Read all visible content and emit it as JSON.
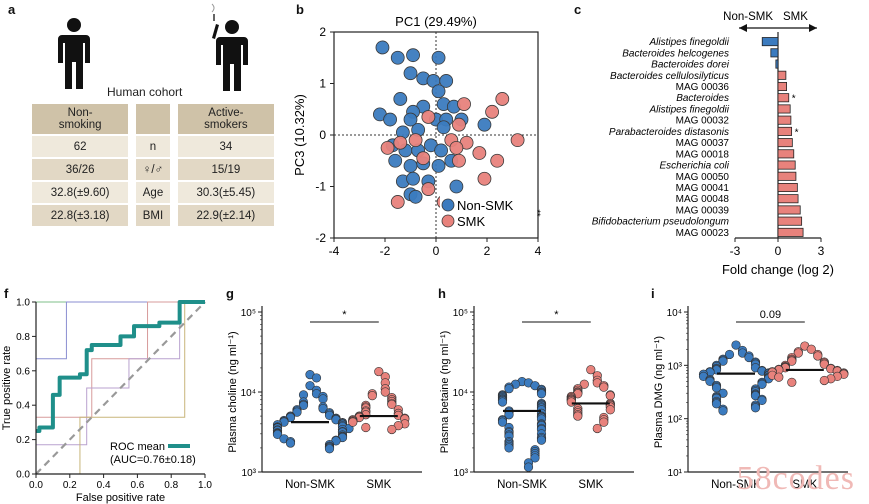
{
  "panel_labels": [
    "a",
    "b",
    "c",
    "f",
    "g",
    "h",
    "i"
  ],
  "colors": {
    "non_smk": "#3b7bbf",
    "smk": "#e8827c",
    "teal": "#1f8f8a",
    "beige_dark": "#cfc2a8",
    "beige_mid": "#e2d8c5",
    "beige_light": "#efe9dc"
  },
  "panel_a": {
    "title": "Human cohort",
    "icons": [
      "person-icon",
      "person-smoking-icon"
    ],
    "header": {
      "left": [
        "Non-",
        "smoking"
      ],
      "right": [
        "Active-",
        "smokers"
      ]
    },
    "rows": [
      {
        "left": "62",
        "mid": "n",
        "right": "34"
      },
      {
        "left": "36/26",
        "mid": "♀/♂",
        "right": "15/19"
      },
      {
        "left": "32.8(±9.60)",
        "mid": "Age",
        "right": "30.3(±5.45)"
      },
      {
        "left": "22.8(±3.18)",
        "mid": "BMI",
        "right": "22.9(±2.14)"
      }
    ]
  },
  "chart_data": [
    {
      "id": "b",
      "type": "scatter",
      "title": "PC1 (29.49%)",
      "ylabel": "PC3 (10.32%)",
      "xlabel": "",
      "xlim": [
        -4,
        4
      ],
      "ylim": [
        -2,
        2
      ],
      "xticks": [
        "-4",
        "-2",
        "0",
        "2",
        "4"
      ],
      "yticks": [
        "-2",
        "-1",
        "0",
        "1",
        "2"
      ],
      "legend": {
        "position": "bottom-right",
        "entries": [
          "Non-SMK",
          "SMK"
        ],
        "significance": "**"
      },
      "series": [
        {
          "name": "Non-SMK",
          "points": [
            [
              -2.1,
              1.7
            ],
            [
              -1.5,
              1.5
            ],
            [
              -0.9,
              1.55
            ],
            [
              0.1,
              1.5
            ],
            [
              -1.0,
              1.2
            ],
            [
              -0.5,
              1.1
            ],
            [
              -0.1,
              1.05
            ],
            [
              0.4,
              1.05
            ],
            [
              0.1,
              0.85
            ],
            [
              -1.4,
              0.7
            ],
            [
              -0.5,
              0.55
            ],
            [
              -0.9,
              0.45
            ],
            [
              0.3,
              0.6
            ],
            [
              0.7,
              0.55
            ],
            [
              -2.2,
              0.4
            ],
            [
              -1.8,
              0.3
            ],
            [
              -1.0,
              0.3
            ],
            [
              0.0,
              0.3
            ],
            [
              0.4,
              0.3
            ],
            [
              -1.3,
              0.05
            ],
            [
              -0.7,
              0.1
            ],
            [
              0.3,
              0.15
            ],
            [
              1.0,
              0.3
            ],
            [
              1.9,
              0.2
            ],
            [
              -1.7,
              -0.2
            ],
            [
              -1.2,
              -0.3
            ],
            [
              -0.7,
              -0.3
            ],
            [
              -0.2,
              -0.2
            ],
            [
              0.2,
              -0.3
            ],
            [
              -1.6,
              -0.5
            ],
            [
              -1.0,
              -0.6
            ],
            [
              -0.5,
              -0.55
            ],
            [
              0.1,
              -0.6
            ],
            [
              -1.3,
              -0.9
            ],
            [
              -0.9,
              -0.85
            ],
            [
              -0.3,
              -0.9
            ],
            [
              0.6,
              -0.5
            ],
            [
              -1.0,
              -1.15
            ],
            [
              -0.8,
              -1.2
            ],
            [
              0.8,
              -1.0
            ]
          ]
        },
        {
          "name": "SMK",
          "points": [
            [
              2.6,
              0.7
            ],
            [
              2.2,
              0.45
            ],
            [
              1.1,
              0.6
            ],
            [
              -0.3,
              0.35
            ],
            [
              0.9,
              0.2
            ],
            [
              -1.9,
              -0.25
            ],
            [
              -1.4,
              -0.15
            ],
            [
              -0.8,
              -0.1
            ],
            [
              0.6,
              -0.1
            ],
            [
              1.2,
              -0.15
            ],
            [
              0.8,
              -0.25
            ],
            [
              3.2,
              -0.1
            ],
            [
              1.7,
              -0.35
            ],
            [
              -0.5,
              -0.45
            ],
            [
              0.9,
              -0.5
            ],
            [
              2.4,
              -0.5
            ],
            [
              -1.5,
              -1.3
            ],
            [
              -0.3,
              -1.05
            ],
            [
              0.3,
              -1.3
            ],
            [
              1.9,
              -0.85
            ],
            [
              1.3,
              -1.3
            ]
          ]
        }
      ]
    },
    {
      "id": "c",
      "type": "bar",
      "orientation": "horizontal",
      "xlabel": "Fold change (log 2)",
      "xlim": [
        -3,
        3
      ],
      "xticks": [
        "-3",
        "0",
        "3"
      ],
      "direction_labels": [
        "Non-SMK",
        "SMK"
      ],
      "categories": [
        "Alistipes finegoldii",
        "Bacteroides helcogenes",
        "Bacteroides dorei",
        "Bacteroides cellulosilyticus",
        "MAG 00036",
        "Bacteroides",
        "Alistipes finegoldii",
        "MAG 00032",
        "Parabacteroides distasonis",
        "MAG 00037",
        "MAG 00018",
        "Escherichia coli",
        "MAG 00050",
        "MAG 00041",
        "MAG 00048",
        "MAG 00039",
        "Bifidobacterium pseudolongum",
        "MAG 00023"
      ],
      "italic": [
        true,
        true,
        true,
        true,
        false,
        true,
        true,
        false,
        true,
        false,
        false,
        true,
        false,
        false,
        false,
        false,
        true,
        false
      ],
      "values": [
        -1.1,
        -0.5,
        -0.15,
        0.55,
        0.6,
        0.75,
        0.85,
        0.9,
        0.95,
        1.0,
        1.1,
        1.2,
        1.25,
        1.35,
        1.4,
        1.55,
        1.65,
        1.75
      ],
      "stars": [
        "",
        "",
        "",
        "",
        "",
        "*",
        "",
        "",
        "*",
        "",
        "",
        "",
        "",
        "",
        "",
        "",
        "",
        ""
      ]
    },
    {
      "id": "f",
      "type": "line",
      "xlabel": "False positive rate",
      "ylabel": "True positive rate",
      "xlim": [
        0,
        1
      ],
      "ylim": [
        0,
        1
      ],
      "xticks": [
        "0.0",
        "0.2",
        "0.4",
        "0.6",
        "0.8",
        "1.0"
      ],
      "yticks": [
        "0.0",
        "0.2",
        "0.4",
        "0.6",
        "0.8",
        "1.0"
      ],
      "legend": {
        "position": "bottom-right",
        "entries": [
          "ROC mean",
          "(AUC=0.76±0.18)"
        ]
      },
      "series": [
        {
          "name": "ROC mean",
          "points": [
            [
              0,
              0.25
            ],
            [
              0.02,
              0.25
            ],
            [
              0.02,
              0.27
            ],
            [
              0.1,
              0.27
            ],
            [
              0.1,
              0.46
            ],
            [
              0.14,
              0.46
            ],
            [
              0.14,
              0.56
            ],
            [
              0.26,
              0.56
            ],
            [
              0.26,
              0.58
            ],
            [
              0.3,
              0.58
            ],
            [
              0.3,
              0.72
            ],
            [
              0.33,
              0.72
            ],
            [
              0.33,
              0.75
            ],
            [
              0.5,
              0.75
            ],
            [
              0.5,
              0.8
            ],
            [
              0.58,
              0.8
            ],
            [
              0.58,
              0.86
            ],
            [
              0.73,
              0.86
            ],
            [
              0.73,
              0.88
            ],
            [
              0.85,
              0.88
            ],
            [
              0.85,
              1.0
            ],
            [
              1.0,
              1.0
            ]
          ]
        },
        {
          "name": "fold1",
          "points": [
            [
              0,
              0
            ],
            [
              0,
              1
            ],
            [
              1,
              1
            ]
          ]
        },
        {
          "name": "fold2",
          "points": [
            [
              0,
              0
            ],
            [
              0,
              0.67
            ],
            [
              0.18,
              0.67
            ],
            [
              0.18,
              1
            ],
            [
              1,
              1
            ]
          ]
        },
        {
          "name": "fold3",
          "points": [
            [
              0,
              0
            ],
            [
              0,
              0.33
            ],
            [
              0.33,
              0.33
            ],
            [
              0.33,
              0.67
            ],
            [
              0.66,
              0.67
            ],
            [
              0.66,
              1
            ],
            [
              1,
              1
            ]
          ]
        },
        {
          "name": "fold4",
          "points": [
            [
              0,
              0
            ],
            [
              0,
              0.17
            ],
            [
              0.3,
              0.17
            ],
            [
              0.3,
              0.5
            ],
            [
              0.55,
              0.5
            ],
            [
              0.55,
              0.67
            ],
            [
              0.85,
              0.67
            ],
            [
              0.85,
              1
            ],
            [
              1,
              1
            ]
          ]
        },
        {
          "name": "fold5",
          "points": [
            [
              0,
              0
            ],
            [
              0.26,
              0
            ],
            [
              0.26,
              0.33
            ],
            [
              0.88,
              0.33
            ],
            [
              0.88,
              1
            ],
            [
              1,
              1
            ]
          ]
        }
      ],
      "diagonal": [
        [
          0,
          0
        ],
        [
          1,
          1
        ]
      ]
    },
    {
      "id": "g",
      "type": "scatter",
      "ylabel": "Plasma choline (ng ml⁻¹)",
      "yscale": "log",
      "ylim": [
        1000,
        100000
      ],
      "yticks": [
        "10³",
        "10⁴",
        "10⁵"
      ],
      "categories": [
        "Non-SMK",
        "SMK"
      ],
      "significance": "*",
      "means": [
        4200,
        5000
      ],
      "series": [
        {
          "name": "Non-SMK",
          "values": [
            16500,
            15000,
            12000,
            10500,
            9500,
            9200,
            8800,
            8200,
            7500,
            7000,
            6800,
            6500,
            6200,
            6000,
            5800,
            5600,
            5500,
            5300,
            5100,
            5000,
            4900,
            4800,
            4700,
            4600,
            4500,
            4400,
            4300,
            4200,
            4150,
            4100,
            4000,
            3950,
            3900,
            3800,
            3700,
            3650,
            3600,
            3550,
            3500,
            3400,
            3350,
            3300,
            3200,
            3150,
            3100,
            3050,
            3000,
            2950,
            2900,
            2800,
            2750,
            2700,
            2600,
            2500,
            2450,
            2400,
            2300,
            2200,
            2100,
            2050,
            2000,
            1950
          ]
        },
        {
          "name": "SMK",
          "values": [
            18000,
            15500,
            13000,
            11000,
            10000,
            9500,
            9000,
            8500,
            8000,
            7600,
            7200,
            7000,
            6800,
            6500,
            6300,
            6000,
            5800,
            5600,
            5400,
            5200,
            5100,
            5000,
            4900,
            4800,
            4700,
            4600,
            4500,
            4400,
            4300,
            4200,
            4000,
            3800,
            3600,
            3400
          ]
        }
      ]
    },
    {
      "id": "h",
      "type": "scatter",
      "ylabel": "Plasma betaine (ng ml⁻¹)",
      "yscale": "log",
      "ylim": [
        1000,
        100000
      ],
      "yticks": [
        "10³",
        "10⁴",
        "10⁵"
      ],
      "categories": [
        "Non-SMK",
        "SMK"
      ],
      "significance": "*",
      "means": [
        5800,
        7200
      ],
      "series": [
        {
          "name": "Non-SMK",
          "values": [
            13500,
            13000,
            12500,
            12000,
            11500,
            11000,
            10800,
            10500,
            10000,
            9800,
            9500,
            9200,
            9000,
            8800,
            8500,
            8200,
            8000,
            7800,
            7500,
            7200,
            7000,
            6800,
            6500,
            6300,
            6000,
            5800,
            5600,
            5400,
            5200,
            5000,
            4900,
            4800,
            4600,
            4500,
            4400,
            4200,
            4000,
            3900,
            3800,
            3600,
            3500,
            3400,
            3200,
            3100,
            3000,
            2900,
            2800,
            2700,
            2600,
            2500,
            2400,
            2300,
            2200,
            2100,
            2000,
            1900,
            1800,
            1700,
            1600,
            1500,
            1300,
            1150
          ]
        },
        {
          "name": "SMK",
          "values": [
            19000,
            16000,
            14000,
            13000,
            12500,
            12000,
            11500,
            11000,
            10500,
            10000,
            9800,
            9500,
            9200,
            9000,
            8800,
            8500,
            8200,
            8000,
            7800,
            7500,
            7200,
            7000,
            6800,
            6500,
            6200,
            6000,
            5800,
            5500,
            5200,
            5000,
            4800,
            4500,
            4200,
            3500
          ]
        }
      ]
    },
    {
      "id": "i",
      "type": "scatter",
      "ylabel": "Plasma DMG (ng ml⁻¹)",
      "yscale": "log",
      "ylim": [
        10,
        10000
      ],
      "yticks": [
        "10¹",
        "10²",
        "10³",
        "10⁴"
      ],
      "categories": [
        "Non-SMK",
        "SMK"
      ],
      "significance": "0.09",
      "means": [
        700,
        820
      ],
      "series": [
        {
          "name": "Non-SMK",
          "values": [
            2400,
            1900,
            1700,
            1600,
            1500,
            1400,
            1300,
            1250,
            1200,
            1150,
            1100,
            1050,
            1000,
            950,
            900,
            880,
            850,
            820,
            800,
            780,
            760,
            740,
            720,
            700,
            680,
            660,
            640,
            620,
            600,
            580,
            560,
            540,
            520,
            500,
            480,
            460,
            440,
            420,
            400,
            380,
            360,
            340,
            320,
            300,
            290,
            280,
            270,
            260,
            250,
            240,
            230,
            220,
            210,
            200,
            190,
            180,
            170,
            160,
            150,
            140
          ]
        },
        {
          "name": "SMK",
          "values": [
            2300,
            2000,
            1800,
            1700,
            1600,
            1500,
            1400,
            1300,
            1250,
            1200,
            1150,
            1100,
            1050,
            1000,
            950,
            920,
            900,
            880,
            860,
            840,
            820,
            800,
            780,
            760,
            740,
            720,
            700,
            680,
            650,
            620,
            600,
            560,
            520,
            480
          ]
        }
      ]
    }
  ],
  "watermark": "58codes"
}
